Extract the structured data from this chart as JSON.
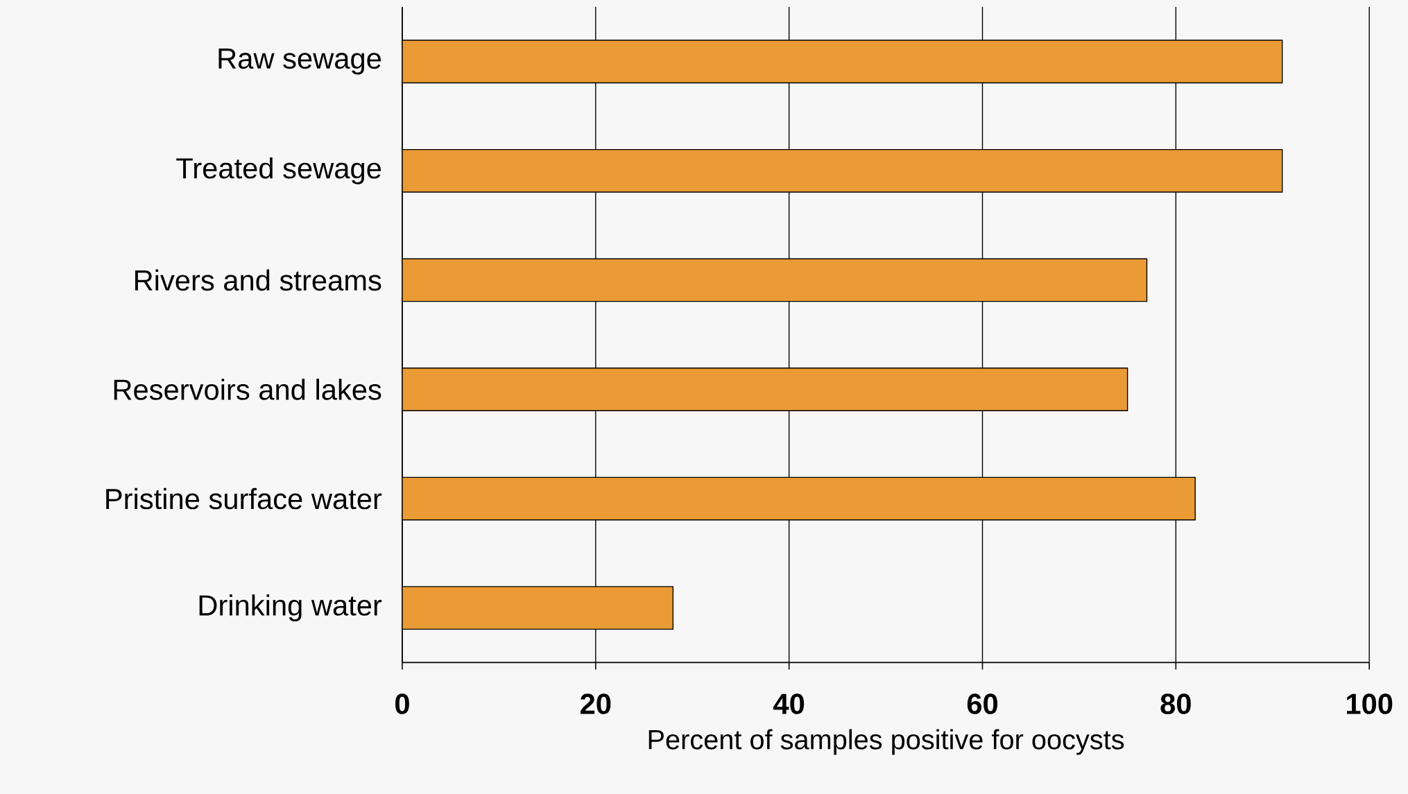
{
  "chart_data": {
    "type": "bar",
    "orientation": "horizontal",
    "categories": [
      "Raw sewage",
      "Treated sewage",
      "Rivers and streams",
      "Reservoirs and lakes",
      "Pristine surface water",
      "Drinking water"
    ],
    "values": [
      91,
      91,
      77,
      75,
      82,
      28
    ],
    "color": "#ea9b35",
    "xlim": [
      0,
      100
    ],
    "xticks": [
      0,
      20,
      40,
      60,
      80,
      100
    ],
    "xlabel": "Percent of samples positive for oocysts",
    "grid": "x"
  }
}
